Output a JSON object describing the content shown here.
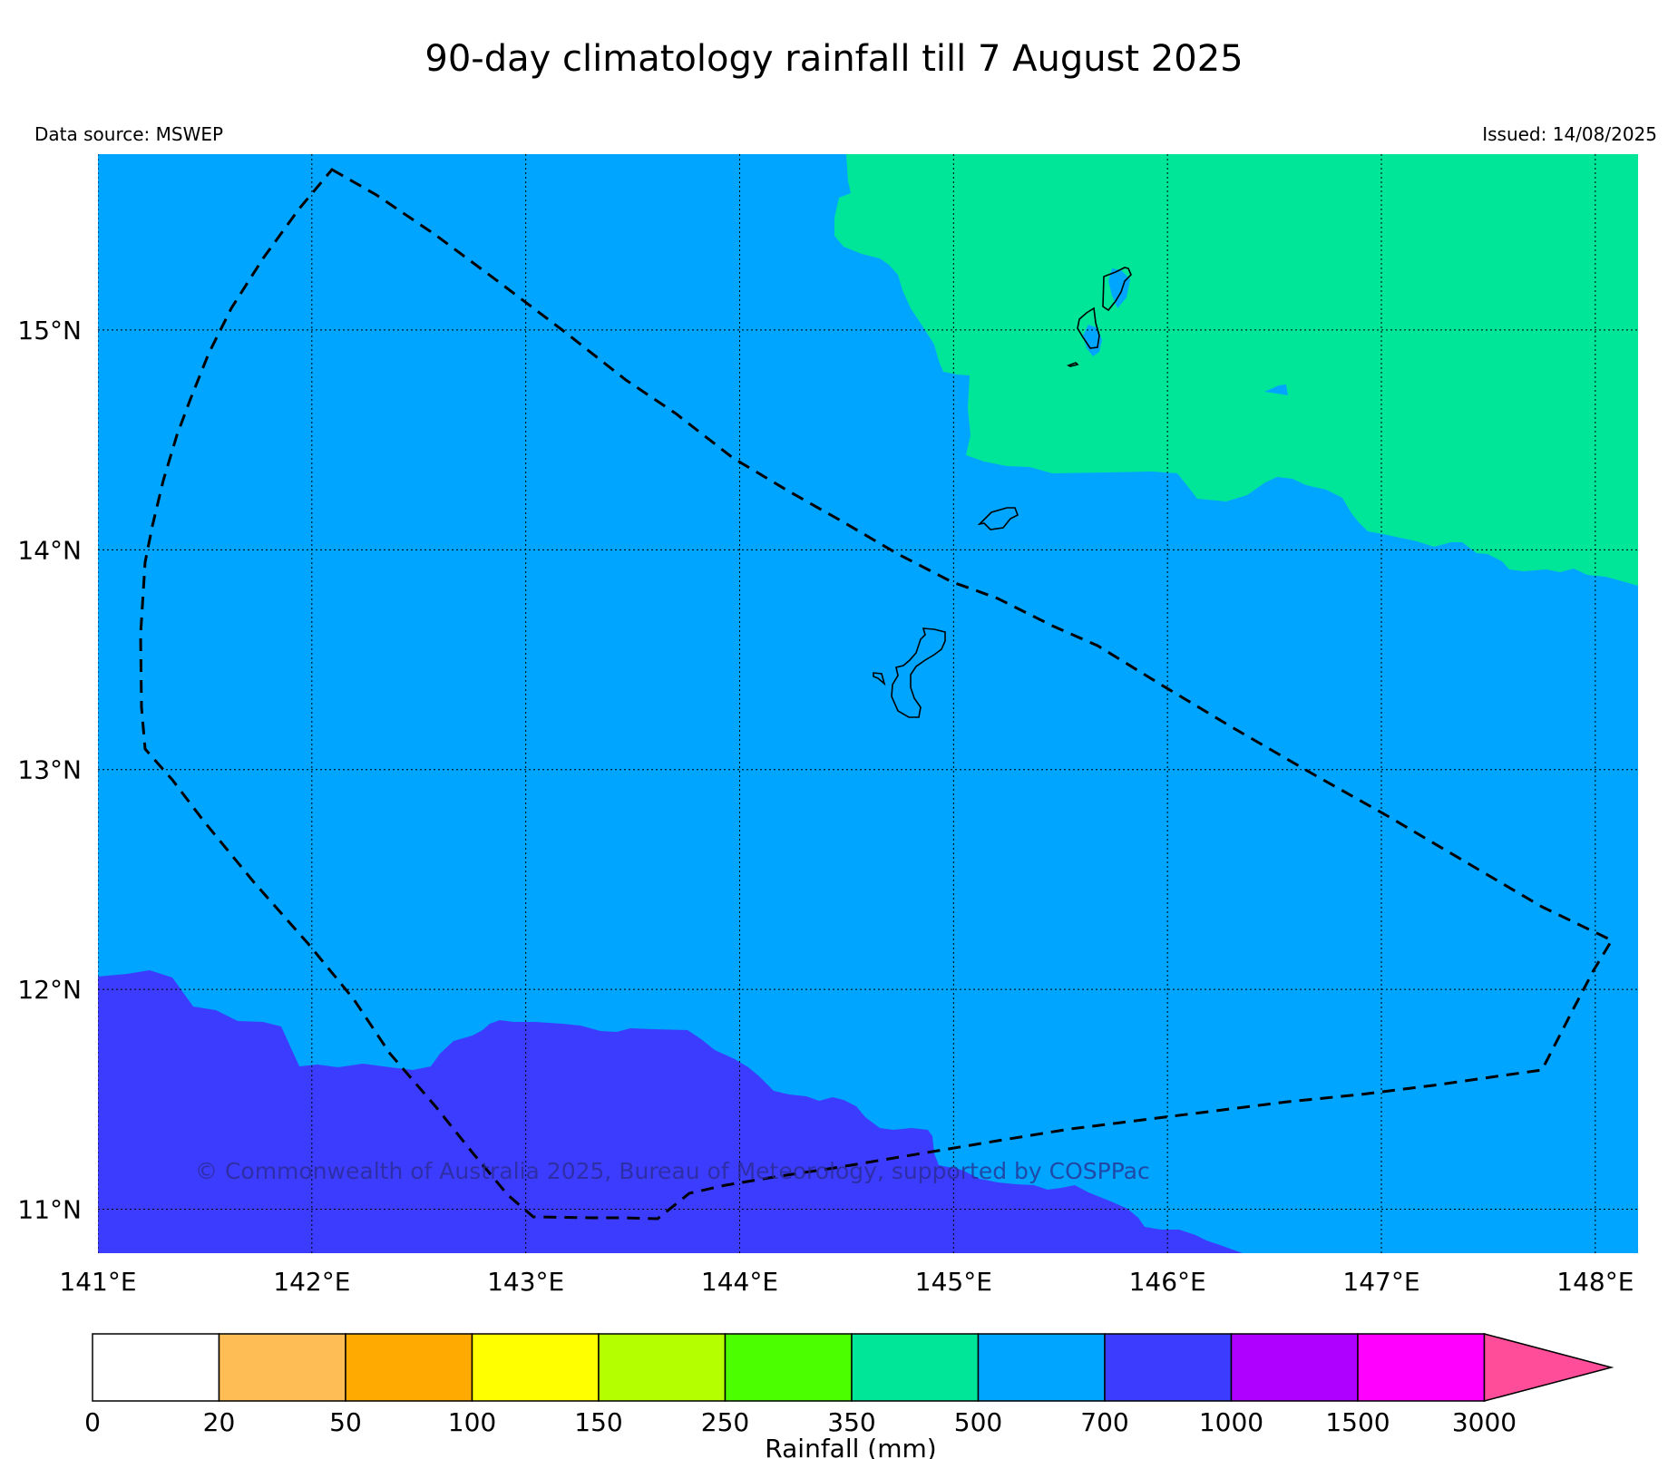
{
  "title": "90-day climatology rainfall till 7 August 2025",
  "data_source": "Data source: MSWEP",
  "issued": "Issued: 14/08/2025",
  "copyright": "© Commonwealth of Australia 2025, Bureau of Meteorology, supported by COSPPac",
  "map": {
    "lon_range": [
      141.0,
      148.2
    ],
    "lat_range": [
      10.8,
      15.8
    ],
    "lon_ticks": [
      {
        "value": 141,
        "label": "141°E"
      },
      {
        "value": 142,
        "label": "142°E"
      },
      {
        "value": 143,
        "label": "143°E"
      },
      {
        "value": 144,
        "label": "144°E"
      },
      {
        "value": 145,
        "label": "145°E"
      },
      {
        "value": 146,
        "label": "146°E"
      },
      {
        "value": 147,
        "label": "147°E"
      },
      {
        "value": 148,
        "label": "148°E"
      }
    ],
    "lat_ticks": [
      {
        "value": 15,
        "label": "15°N"
      },
      {
        "value": 14,
        "label": "14°N"
      },
      {
        "value": 13,
        "label": "13°N"
      },
      {
        "value": 12,
        "label": "12°N"
      },
      {
        "value": 11,
        "label": "11°N"
      }
    ],
    "grid": true,
    "base_class_color": "#00a5ff",
    "north_region_color": "#00e699",
    "south_region_color": "#3c3cff"
  },
  "colorbar": {
    "label": "Rainfall (mm)",
    "ticks": [
      "0",
      "20",
      "50",
      "100",
      "150",
      "250",
      "350",
      "500",
      "700",
      "1000",
      "1500",
      "3000"
    ],
    "colors": [
      "#ffffff",
      "#ffbe55",
      "#ffaa00",
      "#ffff00",
      "#b4ff00",
      "#4bff00",
      "#00e699",
      "#00a5ff",
      "#3c3cff",
      "#af00ff",
      "#ff00ff"
    ],
    "extend_color": "#ff4d9a"
  }
}
